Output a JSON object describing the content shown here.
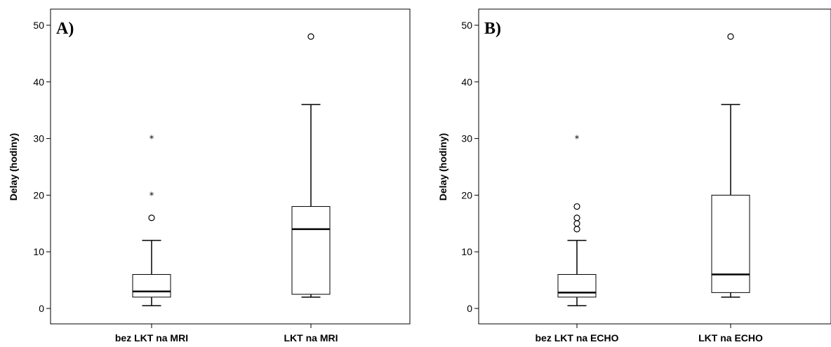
{
  "chart_data": [
    {
      "type": "boxplot",
      "panel_label": "A)",
      "ylabel": "Delay (hodiny)",
      "ylim": [
        0,
        50
      ],
      "yticks": [
        0,
        10,
        20,
        30,
        40,
        50
      ],
      "categories": [
        "bez LKT na MRI",
        "LKT na MRI"
      ],
      "boxes": [
        {
          "min": 0.5,
          "q1": 2,
          "median": 3,
          "q3": 6,
          "max": 12,
          "outliers": [
            16
          ],
          "extremes": [
            20,
            30
          ]
        },
        {
          "min": 2,
          "q1": 2.5,
          "median": 14,
          "q3": 18,
          "max": 36,
          "outliers": [
            48
          ],
          "extremes": []
        }
      ]
    },
    {
      "type": "boxplot",
      "panel_label": "B)",
      "ylabel": "Delay (hodiny)",
      "ylim": [
        0,
        50
      ],
      "yticks": [
        0,
        10,
        20,
        30,
        40,
        50
      ],
      "categories": [
        "bez LKT na ECHO",
        "LKT na ECHO"
      ],
      "boxes": [
        {
          "min": 0.5,
          "q1": 2,
          "median": 2.8,
          "q3": 6,
          "max": 12,
          "outliers": [
            14,
            15,
            16,
            18
          ],
          "extremes": [
            30
          ]
        },
        {
          "min": 2,
          "q1": 2.8,
          "median": 6,
          "q3": 20,
          "max": 36,
          "outliers": [
            48
          ],
          "extremes": []
        }
      ]
    }
  ]
}
